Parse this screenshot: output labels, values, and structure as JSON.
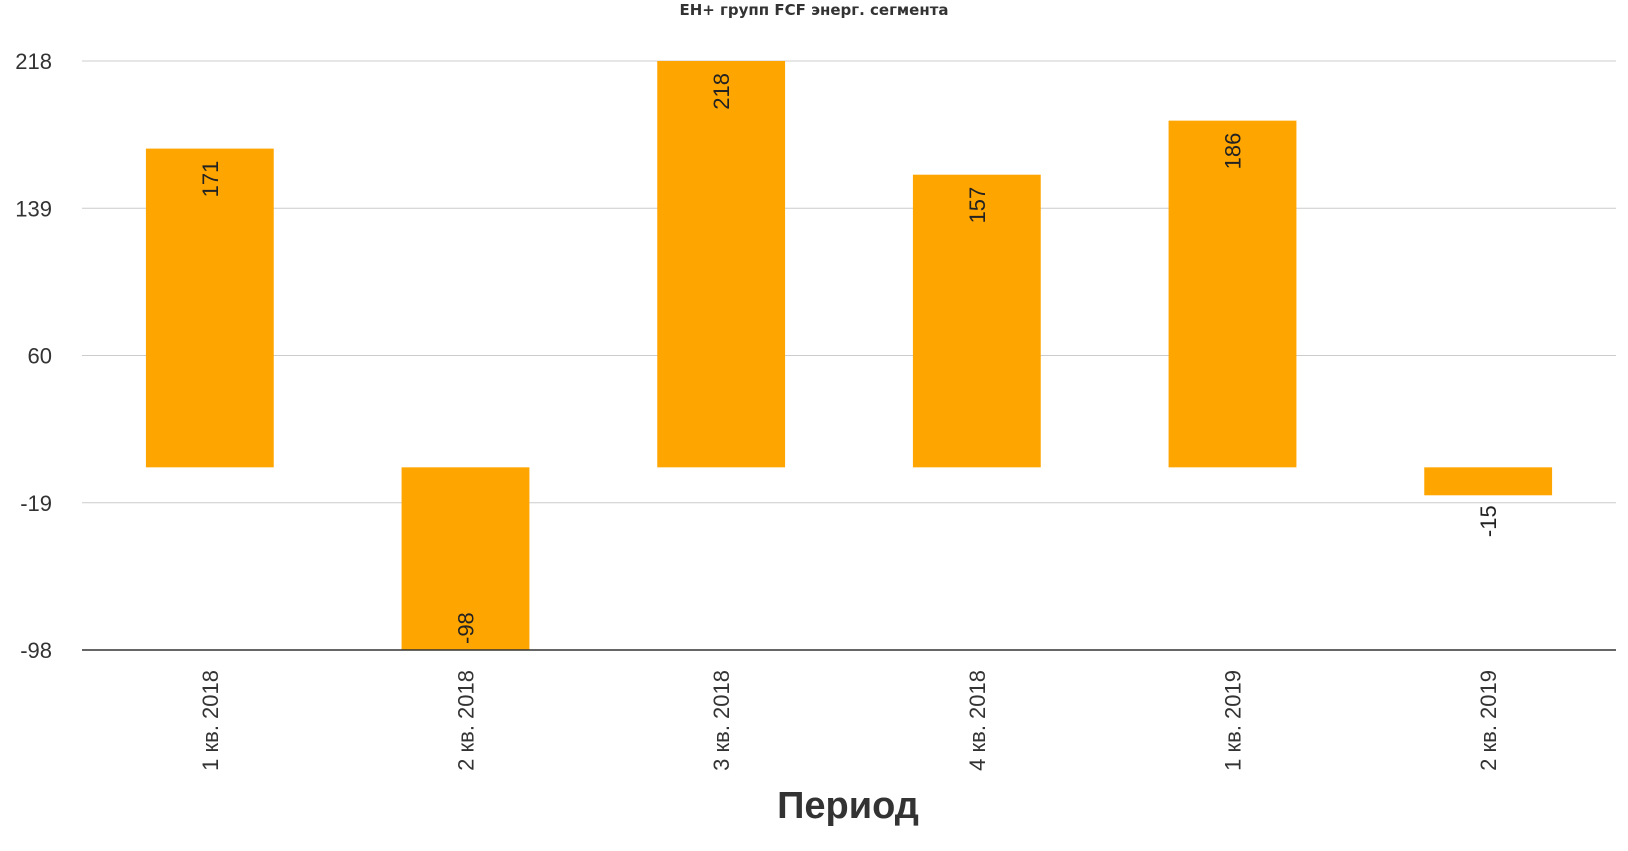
{
  "chart_data": {
    "type": "bar",
    "title": "ЕН+ групп FCF энерг. сегмента",
    "xlabel": "Период",
    "ylabel": "",
    "categories": [
      "1 кв. 2018",
      "2 кв. 2018",
      "3 кв. 2018",
      "4 кв. 2018",
      "1 кв. 2019",
      "2 кв. 2019"
    ],
    "values": [
      171,
      -98,
      218,
      157,
      186,
      -15
    ],
    "data_labels": [
      "171",
      "-98",
      "218",
      "157",
      "186",
      "-15"
    ],
    "yticks": [
      218,
      139,
      60,
      -19,
      -98
    ],
    "ytick_labels": [
      "218",
      "139",
      "60",
      "-19",
      "-98"
    ],
    "ylim": [
      -98,
      218
    ],
    "grid": true,
    "legend": "none",
    "bar_color": "#FFA500"
  }
}
